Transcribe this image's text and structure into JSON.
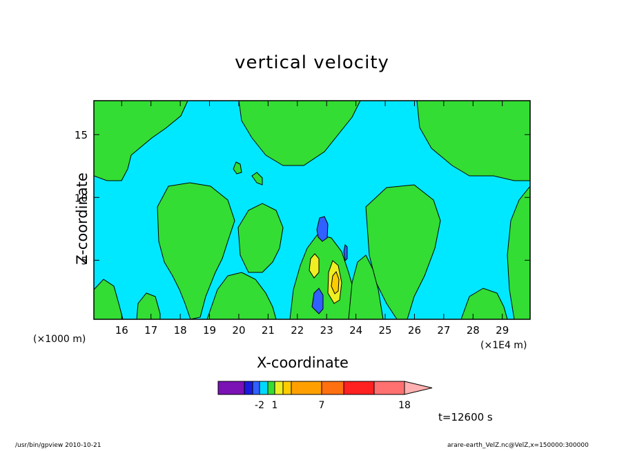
{
  "chart_data": {
    "type": "heatmap",
    "title": "vertical velocity",
    "xlabel": "X-coordinate",
    "ylabel": "Z-coordinate",
    "x_unit_left": "(×1000 m)",
    "x_unit_right": "(×1E4 m)",
    "x_ticks": [
      16,
      17,
      18,
      19,
      20,
      21,
      22,
      23,
      24,
      25,
      26,
      27,
      28,
      29
    ],
    "y_ticks": [
      5,
      10,
      15
    ],
    "xlim": [
      15.05,
      29.95
    ],
    "ylim": [
      0.3,
      17.7
    ],
    "colorbar": {
      "colors": [
        "#7a12b5",
        "#1a1ae0",
        "#3060ff",
        "#00d8ff",
        "#33dd33",
        "#eeee22",
        "#ffcc00",
        "#ffa000",
        "#ff7010",
        "#ff2020",
        "#ff7070",
        "#ffb0b0"
      ],
      "labels": [
        "-2",
        "1",
        "7",
        "18"
      ],
      "label_positions": [
        2,
        4,
        7,
        10
      ]
    },
    "background_color": "#00e8ff",
    "grid": false
  },
  "time_label": "t=12600 s",
  "footer_left": "/usr/bin/gpview   2010-10-21",
  "footer_right": "arare-earth_VelZ.nc@VelZ,x=150000:300000"
}
